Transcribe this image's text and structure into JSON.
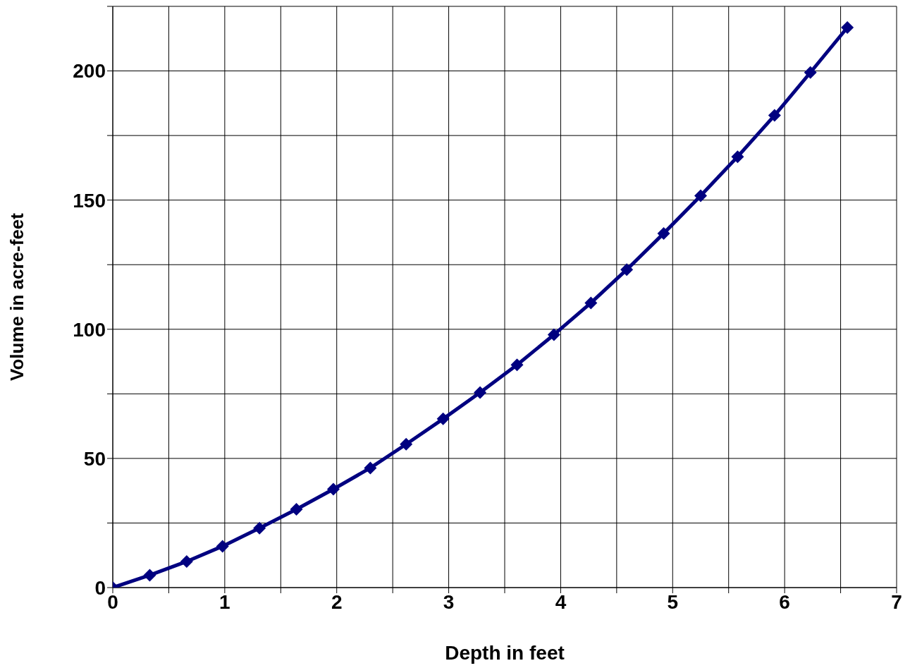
{
  "chart_data": {
    "type": "line",
    "xlabel": "Depth in feet",
    "ylabel": "Volume in  acre-feet",
    "x": [
      0,
      0.33,
      0.66,
      0.98,
      1.31,
      1.64,
      1.97,
      2.3,
      2.62,
      2.95,
      3.28,
      3.61,
      3.94,
      4.27,
      4.59,
      4.92,
      5.25,
      5.58,
      5.91,
      6.23,
      6.56
    ],
    "series": [
      {
        "color": "#000080",
        "values": [
          0,
          4.8,
          10.1,
          16.0,
          23.0,
          30.3,
          38.1,
          46.3,
          55.5,
          65.3,
          75.5,
          86.2,
          97.9,
          110.2,
          123.1,
          137.1,
          151.7,
          166.8,
          182.8,
          199.4,
          216.8
        ]
      }
    ],
    "xlim": [
      0,
      7
    ],
    "xticks": [
      0,
      {
        "value": 0.5,
        "label": null
      },
      1,
      {
        "value": 1.5,
        "label": null
      },
      2,
      {
        "value": 2.5,
        "label": null
      },
      3,
      {
        "value": 3.5,
        "label": null
      },
      4,
      {
        "value": 4.5,
        "label": null
      },
      5,
      {
        "value": 5.5,
        "label": null
      },
      6,
      {
        "value": 6.5,
        "label": null
      },
      7
    ],
    "ylim": [
      0,
      225
    ],
    "yticks": [
      0,
      {
        "value": 25,
        "label": null
      },
      50,
      {
        "value": 75,
        "label": null
      },
      100,
      {
        "value": 125,
        "label": null
      },
      150,
      {
        "value": 175,
        "label": null
      },
      200,
      {
        "value": 225,
        "label": null
      }
    ],
    "grid": true,
    "marker": "diamond",
    "line_style": "solid"
  }
}
